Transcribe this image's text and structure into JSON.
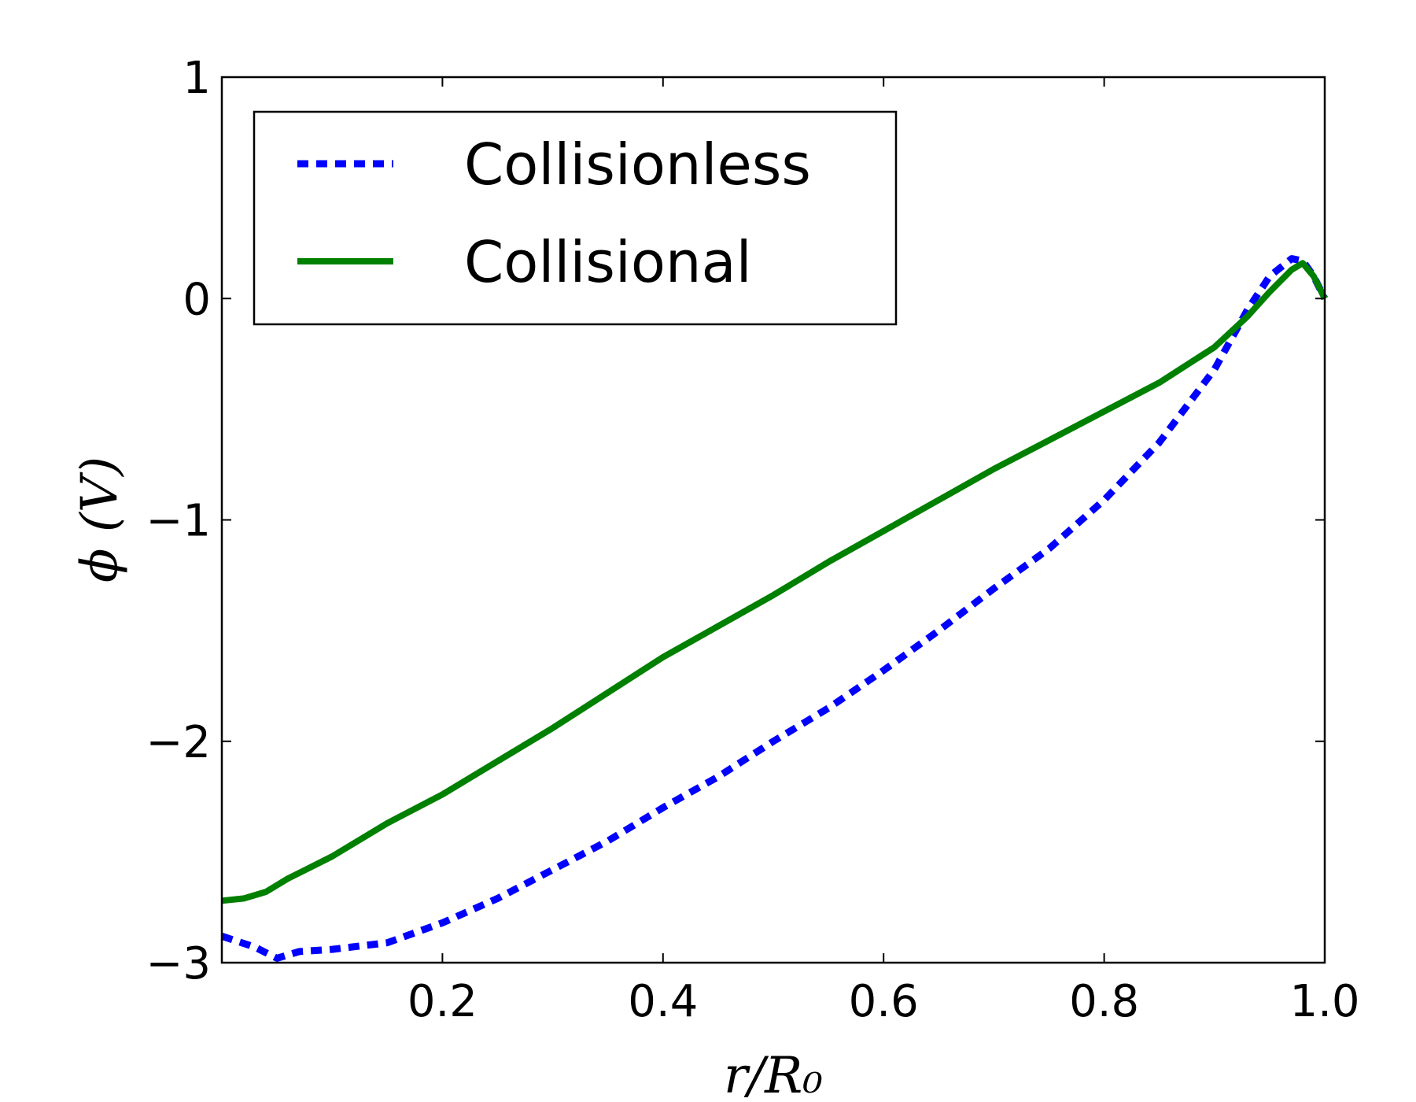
{
  "chart_data": {
    "type": "line",
    "title": "",
    "xlabel": "r/R₀",
    "ylabel": "ϕ (V)",
    "xlim": [
      0.0,
      1.0
    ],
    "ylim": [
      -3,
      1
    ],
    "xticks": [
      0.2,
      0.4,
      0.6,
      0.8,
      1.0
    ],
    "xtick_labels": [
      "0.2",
      "0.4",
      "0.6",
      "0.8",
      "1.0"
    ],
    "yticks": [
      1,
      0,
      -1,
      -2,
      -3
    ],
    "ytick_labels": [
      "1",
      "0",
      "−1",
      "−2",
      "−3"
    ],
    "grid": false,
    "legend_position": "top-left",
    "series": [
      {
        "name": "Collisionless",
        "style": "dotted",
        "color": "#0000ff",
        "x": [
          0.0,
          0.03,
          0.05,
          0.07,
          0.1,
          0.15,
          0.2,
          0.25,
          0.3,
          0.35,
          0.4,
          0.45,
          0.5,
          0.55,
          0.6,
          0.65,
          0.7,
          0.75,
          0.8,
          0.85,
          0.9,
          0.93,
          0.95,
          0.97,
          0.98,
          0.99,
          1.0
        ],
        "y": [
          -2.88,
          -2.93,
          -2.98,
          -2.95,
          -2.94,
          -2.91,
          -2.82,
          -2.71,
          -2.58,
          -2.45,
          -2.3,
          -2.16,
          -2.0,
          -1.85,
          -1.68,
          -1.5,
          -1.31,
          -1.13,
          -0.91,
          -0.65,
          -0.32,
          -0.05,
          0.1,
          0.18,
          0.17,
          0.1,
          0.0
        ]
      },
      {
        "name": "Collisional",
        "style": "solid",
        "color": "#008000",
        "x": [
          0.0,
          0.02,
          0.04,
          0.06,
          0.08,
          0.1,
          0.15,
          0.2,
          0.25,
          0.3,
          0.35,
          0.4,
          0.45,
          0.5,
          0.55,
          0.6,
          0.65,
          0.7,
          0.75,
          0.8,
          0.85,
          0.9,
          0.93,
          0.95,
          0.97,
          0.98,
          0.99,
          1.0
        ],
        "y": [
          -2.72,
          -2.71,
          -2.68,
          -2.62,
          -2.57,
          -2.52,
          -2.37,
          -2.24,
          -2.09,
          -1.94,
          -1.78,
          -1.62,
          -1.48,
          -1.34,
          -1.19,
          -1.05,
          -0.91,
          -0.77,
          -0.64,
          -0.51,
          -0.38,
          -0.22,
          -0.08,
          0.03,
          0.13,
          0.16,
          0.1,
          0.0
        ]
      }
    ]
  }
}
